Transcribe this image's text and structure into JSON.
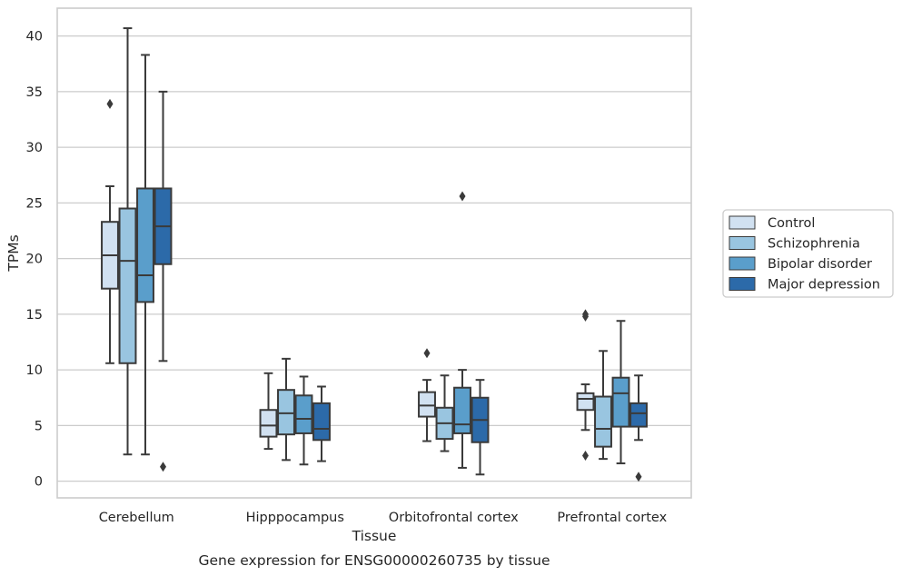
{
  "chart_data": {
    "type": "boxplot",
    "xlabel": "Tissue",
    "ylabel": "TPMs",
    "caption": "Gene expression for ENSG00000260735 by tissue",
    "ylim": [
      -1.5,
      42.5
    ],
    "yticks": [
      0,
      5,
      10,
      15,
      20,
      25,
      30,
      35,
      40
    ],
    "grid": "horizontal",
    "legend_position": "outside-right",
    "categories": [
      "Cerebellum",
      "Hipppocampus",
      "Orbitofrontal cortex",
      "Prefrontal cortex"
    ],
    "series": [
      {
        "name": "Control",
        "color": "#d1e1f1",
        "boxes": [
          {
            "whislo": 10.6,
            "q1": 17.3,
            "med": 20.3,
            "q3": 23.3,
            "whishi": 26.5,
            "fliers": [
              33.9
            ]
          },
          {
            "whislo": 2.9,
            "q1": 4.0,
            "med": 5.0,
            "q3": 6.4,
            "whishi": 9.7,
            "fliers": []
          },
          {
            "whislo": 3.6,
            "q1": 5.8,
            "med": 6.8,
            "q3": 8.0,
            "whishi": 9.1,
            "fliers": [
              11.5
            ]
          },
          {
            "whislo": 4.6,
            "q1": 6.4,
            "med": 7.4,
            "q3": 7.9,
            "whishi": 8.7,
            "fliers": [
              14.8,
              15.0,
              2.3
            ]
          }
        ]
      },
      {
        "name": "Schizophrenia",
        "color": "#99c5e0",
        "boxes": [
          {
            "whislo": 2.4,
            "q1": 10.6,
            "med": 19.8,
            "q3": 24.5,
            "whishi": 40.7,
            "fliers": []
          },
          {
            "whislo": 1.9,
            "q1": 4.2,
            "med": 6.1,
            "q3": 8.2,
            "whishi": 11.0,
            "fliers": []
          },
          {
            "whislo": 2.7,
            "q1": 3.8,
            "med": 5.2,
            "q3": 6.6,
            "whishi": 9.5,
            "fliers": []
          },
          {
            "whislo": 2.0,
            "q1": 3.1,
            "med": 4.7,
            "q3": 7.6,
            "whishi": 11.7,
            "fliers": []
          }
        ]
      },
      {
        "name": "Bipolar disorder",
        "color": "#5a9ecb",
        "boxes": [
          {
            "whislo": 2.4,
            "q1": 16.1,
            "med": 18.5,
            "q3": 26.3,
            "whishi": 38.3,
            "fliers": []
          },
          {
            "whislo": 1.5,
            "q1": 4.3,
            "med": 5.6,
            "q3": 7.7,
            "whishi": 9.4,
            "fliers": []
          },
          {
            "whislo": 1.2,
            "q1": 4.3,
            "med": 5.1,
            "q3": 8.4,
            "whishi": 10.0,
            "fliers": [
              25.6
            ]
          },
          {
            "whislo": 1.6,
            "q1": 4.9,
            "med": 7.9,
            "q3": 9.3,
            "whishi": 14.4,
            "fliers": []
          }
        ]
      },
      {
        "name": "Major depression",
        "color": "#2c6aa9",
        "boxes": [
          {
            "whislo": 10.8,
            "q1": 19.5,
            "med": 22.9,
            "q3": 26.3,
            "whishi": 35.0,
            "fliers": [
              1.3
            ]
          },
          {
            "whislo": 1.8,
            "q1": 3.7,
            "med": 4.7,
            "q3": 7.0,
            "whishi": 8.5,
            "fliers": []
          },
          {
            "whislo": 0.6,
            "q1": 3.5,
            "med": 5.5,
            "q3": 7.5,
            "whishi": 9.1,
            "fliers": []
          },
          {
            "whislo": 3.7,
            "q1": 4.9,
            "med": 6.1,
            "q3": 7.0,
            "whishi": 9.5,
            "fliers": [
              0.4
            ]
          }
        ]
      }
    ]
  }
}
